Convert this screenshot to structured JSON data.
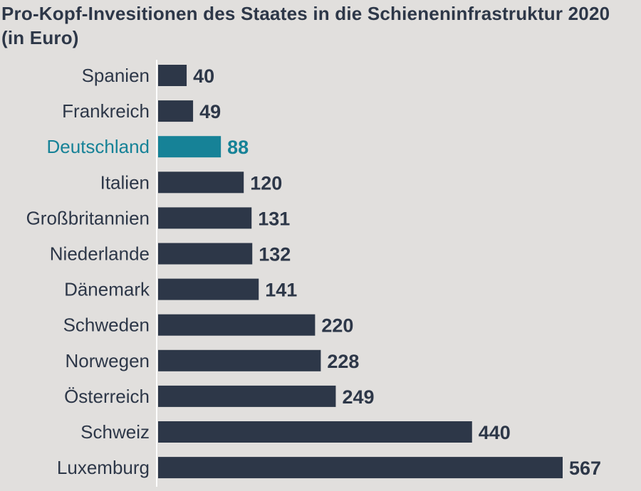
{
  "chart_data": {
    "type": "bar",
    "orientation": "horizontal",
    "title": "Pro-Kopf-Invesitionen des Staates in die Schieneninfrastruktur 2020 (in Euro)",
    "categories": [
      "Spanien",
      "Frankreich",
      "Deutschland",
      "Italien",
      "Großbritannien",
      "Niederlande",
      "Dänemark",
      "Schweden",
      "Norwegen",
      "Österreich",
      "Schweiz",
      "Luxemburg"
    ],
    "values": [
      40,
      49,
      88,
      120,
      131,
      132,
      141,
      220,
      228,
      249,
      440,
      567
    ],
    "value_labels": [
      "40",
      "49",
      "88",
      "120",
      "131",
      "132",
      "141",
      "220",
      "228",
      "249",
      "440",
      "567"
    ],
    "highlight_category": "Deutschland",
    "xlim": [
      0,
      567
    ],
    "grid": false,
    "legend": "none",
    "colors": {
      "bar": "#2d3748",
      "highlight": "#168297",
      "text": "#2d3748",
      "axis": "#ffffff",
      "background": "#e1dfdd"
    }
  }
}
